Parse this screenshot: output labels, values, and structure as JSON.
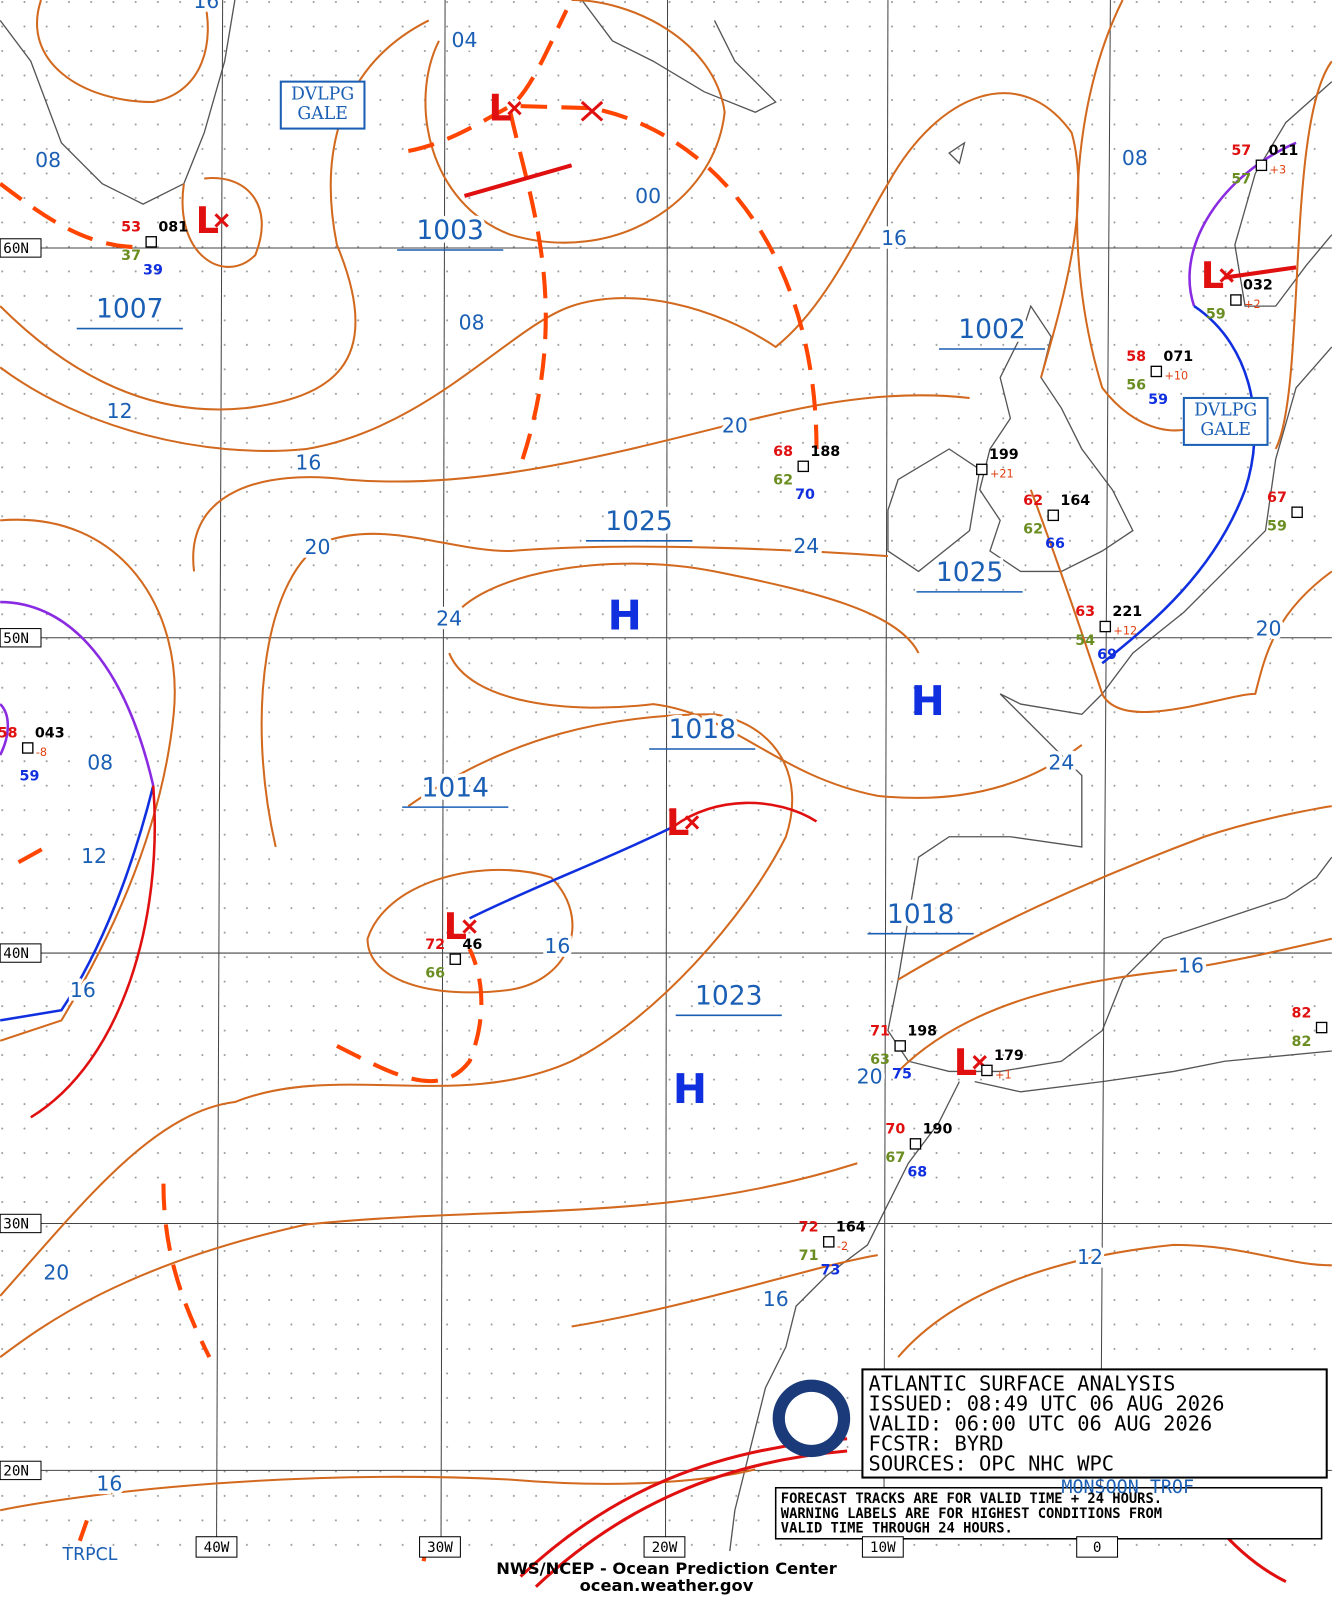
{
  "lat_labels": [
    "60N",
    "50N",
    "40N",
    "30N",
    "20N"
  ],
  "lon_labels": [
    "40W",
    "30W",
    "20W",
    "10W",
    "0"
  ],
  "isobar_labels": [
    "16",
    "04",
    "08",
    "00",
    "08",
    "12",
    "16",
    "20",
    "20",
    "24",
    "24",
    "16",
    "08",
    "08",
    "12",
    "16",
    "16",
    "20",
    "24",
    "20",
    "16",
    "12",
    "16",
    "20",
    "16"
  ],
  "center_pressures": [
    "1003",
    "1007",
    "1002",
    "1025",
    "1025",
    "1018",
    "1014",
    "1018",
    "1023"
  ],
  "highs": [
    "H",
    "H",
    "H"
  ],
  "lows": [
    "L",
    "L",
    "L",
    "L",
    "L",
    "L"
  ],
  "gale_warnings": [
    [
      "DVLPG",
      "GALE"
    ],
    [
      "DVLPG",
      "GALE"
    ]
  ],
  "stations": [
    {
      "temp": "53",
      "press": "081",
      "dew": "37",
      "vis": "39"
    },
    {
      "temp": "68",
      "press": "188",
      "dew": "62",
      "vis": "70"
    },
    {
      "press": "199",
      "tend": "+21"
    },
    {
      "temp": "62",
      "press": "164",
      "dew": "62",
      "vis": "66"
    },
    {
      "temp": "63",
      "press": "221",
      "tend": "+12",
      "dew": "54",
      "vis": "69"
    },
    {
      "temp": "58",
      "press": "071",
      "tend": "+10",
      "dew": "56",
      "vis": "59"
    },
    {
      "press": "032",
      "tend": "+2",
      "dew": "59"
    },
    {
      "temp": "57",
      "press": "011",
      "tend": "+3",
      "dew": "57"
    },
    {
      "temp": "67",
      "dew": "59"
    },
    {
      "temp": "58",
      "press": "043",
      "tend": "-8",
      "vis": "59"
    },
    {
      "temp": "72",
      "press": "46",
      "dew": "66"
    },
    {
      "temp": "71",
      "press": "198",
      "dew": "63",
      "vis": "75"
    },
    {
      "press": "179",
      "tend": "+1"
    },
    {
      "temp": "70",
      "press": "190",
      "dew": "67",
      "vis": "68"
    },
    {
      "temp": "72",
      "press": "164",
      "tend": "-2",
      "dew": "71",
      "vis": "73"
    },
    {
      "temp": "82",
      "dew": "82"
    }
  ],
  "info_box": {
    "lines": [
      "ATLANTIC SURFACE ANALYSIS",
      "ISSUED: 08:49 UTC 06 AUG 2026",
      "VALID:  06:00 UTC 06 AUG 2026",
      "FCSTR:  BYRD",
      "SOURCES: OPC NHC WPC"
    ],
    "notes": [
      "FORECAST TRACKS ARE FOR VALID TIME + 24 HOURS.",
      "WARNING LABELS ARE FOR HIGHEST CONDITIONS FROM",
      "VALID TIME THROUGH 24 HOURS."
    ]
  },
  "feature_labels": [
    "MONSOON TROF",
    "TRPCL"
  ],
  "footer": [
    "NWS/NCEP - Ocean Prediction Center",
    "ocean.weather.gov"
  ]
}
